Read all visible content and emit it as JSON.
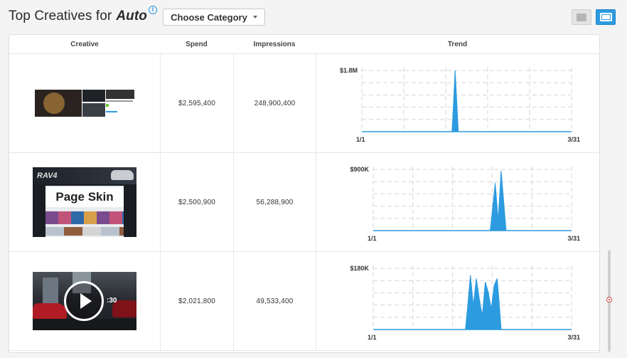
{
  "header": {
    "title": "Top Creatives for",
    "category": "Auto",
    "info_icon": "info-icon",
    "choose_button": "Choose Category"
  },
  "view_toggle": {
    "list_icon": "list-view-icon",
    "grid_icon": "grid-view-icon",
    "active": "grid"
  },
  "table": {
    "columns": [
      "Creative",
      "Spend",
      "Impressions",
      "Trend"
    ],
    "rows": [
      {
        "creative_type": "display",
        "spend": "$2,595,400",
        "impressions": "248,900,400",
        "trend": {
          "ymax_label": "$1.8M",
          "xstart": "1/1",
          "xend": "3/31",
          "ymax": 1800000
        }
      },
      {
        "creative_type": "page-skin",
        "creative_label": "Page Skin",
        "creative_brand": "RAV4",
        "spend": "$2,500,900",
        "impressions": "56,288,900",
        "trend": {
          "ymax_label": "$900K",
          "xstart": "1/1",
          "xend": "3/31",
          "ymax": 900000
        }
      },
      {
        "creative_type": "video",
        "creative_duration": ":30",
        "spend": "$2,021,800",
        "impressions": "49,533,400",
        "trend": {
          "ymax_label": "$180K",
          "xstart": "1/1",
          "xend": "3/31",
          "ymax": 180000
        }
      }
    ]
  },
  "chart_data": [
    {
      "type": "area",
      "x_range": [
        "1/1",
        "3/31"
      ],
      "ylim": [
        0,
        1800000
      ],
      "ytick_label": "$1.8M",
      "series": [
        {
          "values": [
            [
              0,
              0
            ],
            [
              0.43,
              0
            ],
            [
              0.445,
              1800000
            ],
            [
              0.46,
              0
            ],
            [
              1,
              0
            ]
          ]
        }
      ]
    },
    {
      "type": "area",
      "x_range": [
        "1/1",
        "3/31"
      ],
      "ylim": [
        0,
        900000
      ],
      "ytick_label": "$900K",
      "series": [
        {
          "values": [
            [
              0,
              0
            ],
            [
              0.59,
              0
            ],
            [
              0.615,
              700000
            ],
            [
              0.63,
              150000
            ],
            [
              0.645,
              880000
            ],
            [
              0.67,
              0
            ],
            [
              1,
              0
            ]
          ]
        }
      ]
    },
    {
      "type": "area",
      "x_range": [
        "1/1",
        "3/31"
      ],
      "ylim": [
        0,
        180000
      ],
      "ytick_label": "$180K",
      "series": [
        {
          "values": [
            [
              0,
              0
            ],
            [
              0.465,
              0
            ],
            [
              0.475,
              60000
            ],
            [
              0.49,
              160000
            ],
            [
              0.505,
              70000
            ],
            [
              0.52,
              150000
            ],
            [
              0.535,
              90000
            ],
            [
              0.55,
              40000
            ],
            [
              0.565,
              140000
            ],
            [
              0.58,
              110000
            ],
            [
              0.595,
              60000
            ],
            [
              0.61,
              130000
            ],
            [
              0.625,
              150000
            ],
            [
              0.635,
              80000
            ],
            [
              0.645,
              0
            ],
            [
              1,
              0
            ]
          ]
        }
      ]
    }
  ]
}
